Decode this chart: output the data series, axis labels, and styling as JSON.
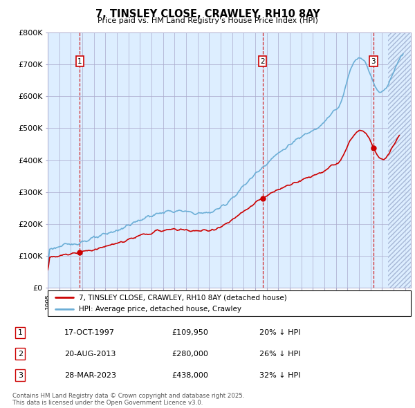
{
  "title": "7, TINSLEY CLOSE, CRAWLEY, RH10 8AY",
  "subtitle": "Price paid vs. HM Land Registry's House Price Index (HPI)",
  "ylim": [
    0,
    800000
  ],
  "yticks": [
    0,
    100000,
    200000,
    300000,
    400000,
    500000,
    600000,
    700000,
    800000
  ],
  "ytick_labels": [
    "£0",
    "£100K",
    "£200K",
    "£300K",
    "£400K",
    "£500K",
    "£600K",
    "£700K",
    "£800K"
  ],
  "xlim_start": 1995.0,
  "xlim_end": 2026.5,
  "sale_dates": [
    1997.79,
    2013.63,
    2023.24
  ],
  "sale_prices": [
    109950,
    280000,
    438000
  ],
  "sale_labels": [
    "1",
    "2",
    "3"
  ],
  "hpi_line_color": "#6baed6",
  "price_line_color": "#cc0000",
  "vline_color": "#cc0000",
  "chart_bg_color": "#ddeeff",
  "legend_entries": [
    "7, TINSLEY CLOSE, CRAWLEY, RH10 8AY (detached house)",
    "HPI: Average price, detached house, Crawley"
  ],
  "table_data": [
    [
      "1",
      "17-OCT-1997",
      "£109,950",
      "20% ↓ HPI"
    ],
    [
      "2",
      "20-AUG-2013",
      "£280,000",
      "26% ↓ HPI"
    ],
    [
      "3",
      "28-MAR-2023",
      "£438,000",
      "32% ↓ HPI"
    ]
  ],
  "footer": "Contains HM Land Registry data © Crown copyright and database right 2025.\nThis data is licensed under the Open Government Licence v3.0.",
  "background_color": "#ffffff",
  "grid_color": "#aaaacc"
}
